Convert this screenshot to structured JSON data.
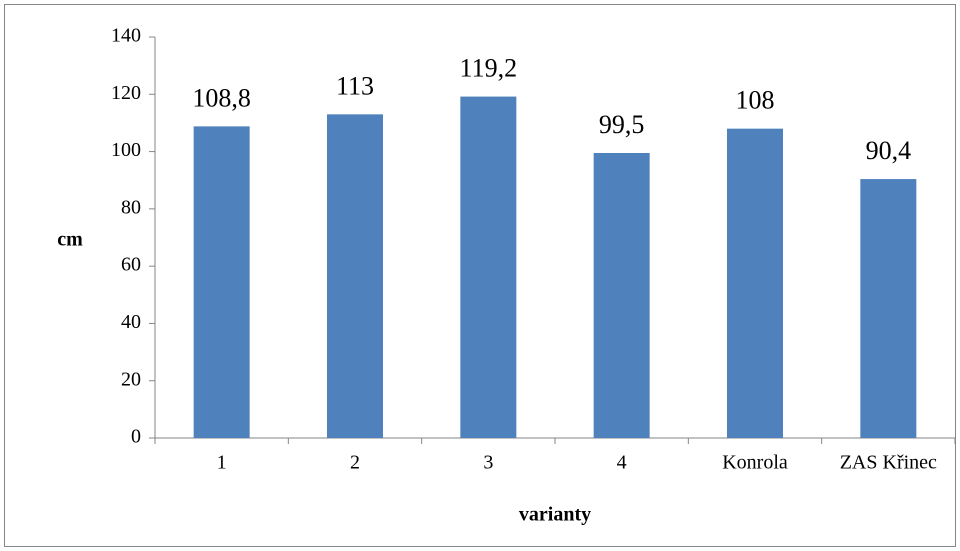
{
  "chart_data": {
    "type": "bar",
    "categories": [
      "1",
      "2",
      "3",
      "4",
      "Konrola",
      "ZAS Křinec"
    ],
    "values": [
      108.8,
      113,
      119.2,
      99.5,
      108,
      90.4
    ],
    "value_labels": [
      "108,8",
      "113",
      "119,2",
      "99,5",
      "108",
      "90,4"
    ],
    "color": "#4f81bd",
    "x_label": "varianty",
    "y_label": "cm",
    "ylim": [
      0,
      140
    ],
    "yticks": [
      0,
      20,
      40,
      60,
      80,
      100,
      120,
      140
    ],
    "grid": false
  }
}
